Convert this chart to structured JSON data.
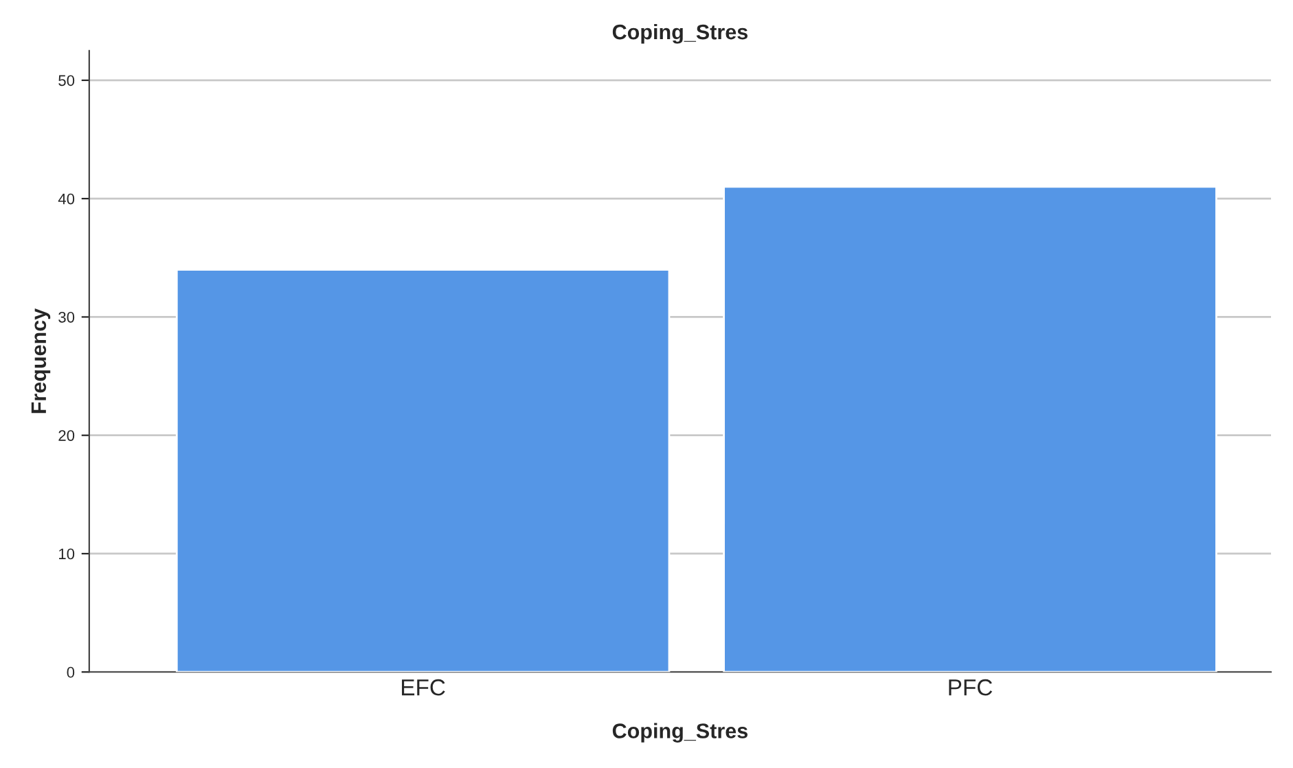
{
  "chart_data": {
    "type": "bar",
    "title": "Coping_Stres",
    "xlabel": "Coping_Stres",
    "ylabel": "Frequency",
    "categories": [
      "EFC",
      "PFC"
    ],
    "values": [
      34,
      41
    ],
    "color": "#5596e6",
    "ylim": [
      0,
      52.5
    ],
    "yticks": [
      0,
      10,
      20,
      30,
      40,
      50
    ],
    "grid": "y",
    "legend": false
  }
}
